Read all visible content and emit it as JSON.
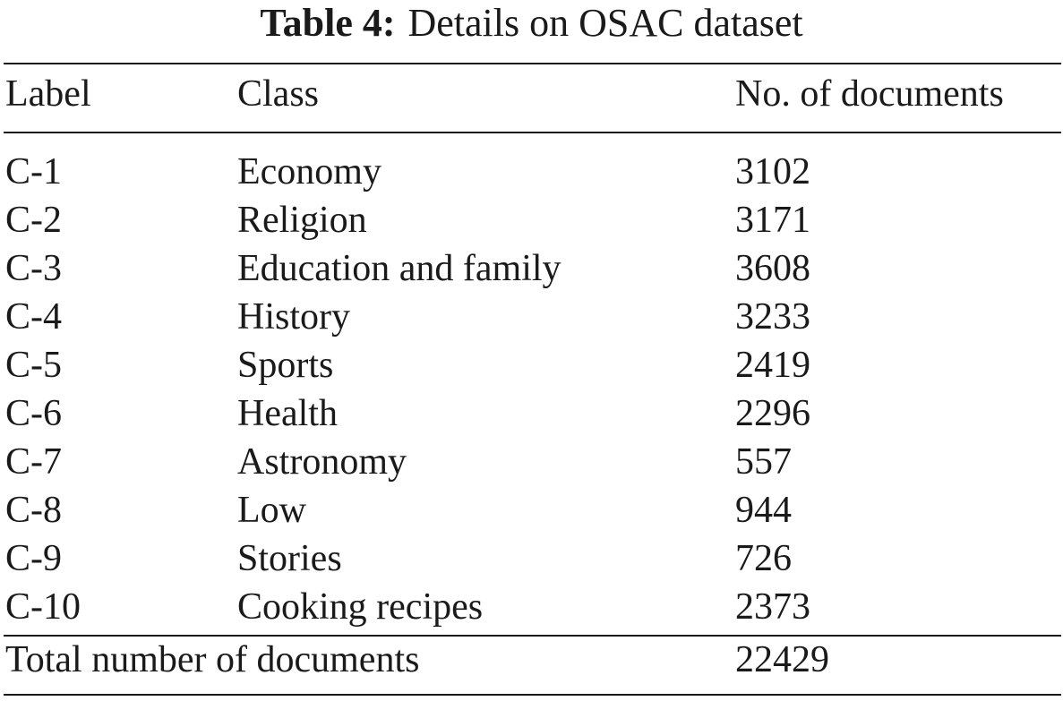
{
  "table": {
    "caption_label": "Table 4:",
    "caption_text": "Details on OSAC dataset",
    "headers": [
      "Label",
      "Class",
      "No. of documents"
    ],
    "rows": [
      [
        "C-1",
        "Economy",
        "3102"
      ],
      [
        "C-2",
        "Religion",
        "3171"
      ],
      [
        "C-3",
        "Education and family",
        "3608"
      ],
      [
        "C-4",
        "History",
        "3233"
      ],
      [
        "C-5",
        "Sports",
        "2419"
      ],
      [
        "C-6",
        "Health",
        "2296"
      ],
      [
        "C-7",
        "Astronomy",
        "557"
      ],
      [
        "C-8",
        "Low",
        "944"
      ],
      [
        "C-9",
        "Stories",
        "726"
      ],
      [
        "C-10",
        "Cooking recipes",
        "2373"
      ]
    ],
    "total_label": "Total number of documents",
    "total_value": "22429"
  }
}
